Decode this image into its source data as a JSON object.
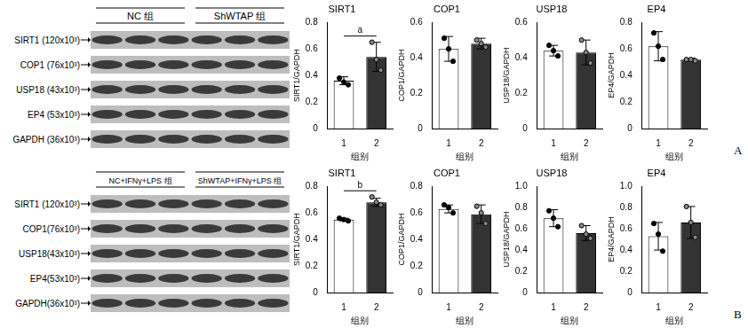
{
  "panel_labels": [
    "A",
    "B"
  ],
  "blots": [
    {
      "groups": [
        "NC 组",
        "ShWTAP 组"
      ],
      "bands": [
        "SIRT1 (120x10³)",
        "COP1 (76x10³)",
        "USP18 (43x10³)",
        "EP4 (53x10³)",
        "GAPDH (36x10³)"
      ]
    },
    {
      "groups": [
        "NC+IFNγ+LPS 组",
        "ShWTAP+IFNγ+LPS 组"
      ],
      "bands": [
        "SIRT1 (120x10³)",
        "COP1(76x10³)",
        "USP18(43x10³)",
        "EP4(53x10³)",
        "GAPDH(36x10³)"
      ]
    }
  ],
  "chart_data": [
    {
      "type": "bar",
      "title": "SIRT1",
      "x_label": "组别",
      "y_label": "SIRT1/GAPDH",
      "categories": [
        "1",
        "2"
      ],
      "values": [
        0.36,
        0.54
      ],
      "errors": [
        0.03,
        0.11
      ],
      "points": [
        [
          0.38,
          0.35,
          0.33
        ],
        [
          0.65,
          0.52,
          0.44
        ]
      ],
      "colors": [
        "#ffffff",
        "#333333"
      ],
      "ylim": [
        0,
        0.8
      ],
      "yticks": [
        0,
        0.2,
        0.4,
        0.6,
        0.8
      ],
      "grid": false,
      "annotation": "a"
    },
    {
      "type": "bar",
      "title": "COP1",
      "x_label": "组别",
      "y_label": "COP1/GAPDH",
      "categories": [
        "1",
        "2"
      ],
      "values": [
        0.45,
        0.48
      ],
      "errors": [
        0.07,
        0.03
      ],
      "points": [
        [
          0.51,
          0.45,
          0.38
        ],
        [
          0.5,
          0.48,
          0.46
        ]
      ],
      "colors": [
        "#ffffff",
        "#333333"
      ],
      "ylim": [
        0,
        0.6
      ],
      "yticks": [
        0,
        0.2,
        0.4,
        0.6
      ],
      "grid": false
    },
    {
      "type": "bar",
      "title": "USP18",
      "x_label": "组别",
      "y_label": "USP18/GAPDH",
      "categories": [
        "1",
        "2"
      ],
      "values": [
        0.44,
        0.43
      ],
      "errors": [
        0.03,
        0.07
      ],
      "points": [
        [
          0.47,
          0.44,
          0.41
        ],
        [
          0.5,
          0.43,
          0.37
        ]
      ],
      "colors": [
        "#ffffff",
        "#333333"
      ],
      "ylim": [
        0,
        0.6
      ],
      "yticks": [
        0,
        0.2,
        0.4,
        0.6
      ],
      "grid": false
    },
    {
      "type": "bar",
      "title": "EP4",
      "x_label": "组别",
      "y_label": "EP4/GAPDH",
      "categories": [
        "1",
        "2"
      ],
      "values": [
        0.62,
        0.52
      ],
      "errors": [
        0.11,
        0.01
      ],
      "points": [
        [
          0.72,
          0.62,
          0.52
        ],
        [
          0.52,
          0.52,
          0.51
        ]
      ],
      "colors": [
        "#ffffff",
        "#333333"
      ],
      "ylim": [
        0,
        0.8
      ],
      "yticks": [
        0,
        0.2,
        0.4,
        0.6,
        0.8
      ],
      "grid": false
    },
    {
      "type": "bar",
      "title": "SIRT1",
      "x_label": "组别",
      "y_label": "SIRT1/GAPDH",
      "categories": [
        "1",
        "2"
      ],
      "values": [
        0.55,
        0.68
      ],
      "errors": [
        0.01,
        0.03
      ],
      "points": [
        [
          0.56,
          0.55,
          0.54
        ],
        [
          0.72,
          0.68,
          0.66
        ]
      ],
      "colors": [
        "#ffffff",
        "#333333"
      ],
      "ylim": [
        0,
        0.8
      ],
      "yticks": [
        0,
        0.2,
        0.4,
        0.6,
        0.8
      ],
      "grid": false,
      "annotation": "b"
    },
    {
      "type": "bar",
      "title": "COP1",
      "x_label": "组别",
      "y_label": "COP1/GAPDH",
      "categories": [
        "1",
        "2"
      ],
      "values": [
        0.63,
        0.59
      ],
      "errors": [
        0.03,
        0.07
      ],
      "points": [
        [
          0.66,
          0.64,
          0.6
        ],
        [
          0.65,
          0.6,
          0.52
        ]
      ],
      "colors": [
        "#ffffff",
        "#333333"
      ],
      "ylim": [
        0,
        0.8
      ],
      "yticks": [
        0,
        0.2,
        0.4,
        0.6,
        0.8
      ],
      "grid": false
    },
    {
      "type": "bar",
      "title": "USP18",
      "x_label": "组别",
      "y_label": "USP18/GAPDH",
      "categories": [
        "1",
        "2"
      ],
      "values": [
        0.7,
        0.56
      ],
      "errors": [
        0.08,
        0.07
      ],
      "points": [
        [
          0.77,
          0.7,
          0.62
        ],
        [
          0.63,
          0.55,
          0.51
        ]
      ],
      "colors": [
        "#ffffff",
        "#333333"
      ],
      "ylim": [
        0,
        1
      ],
      "yticks": [
        0,
        0.2,
        0.4,
        0.6,
        0.8,
        {
          "value": 1,
          "label": "1.0"
        }
      ],
      "grid": false
    },
    {
      "type": "bar",
      "title": "EP4",
      "x_label": "组别",
      "y_label": "EP4/GAPDH",
      "categories": [
        "1",
        "2"
      ],
      "values": [
        0.53,
        0.66
      ],
      "errors": [
        0.13,
        0.15
      ],
      "points": [
        [
          0.65,
          0.55,
          0.39
        ],
        [
          0.81,
          0.66,
          0.52
        ]
      ],
      "colors": [
        "#ffffff",
        "#333333"
      ],
      "ylim": [
        0,
        1
      ],
      "yticks": [
        0,
        0.2,
        0.4,
        0.6,
        0.8,
        {
          "value": 1,
          "label": "1.0"
        }
      ],
      "grid": false
    }
  ]
}
